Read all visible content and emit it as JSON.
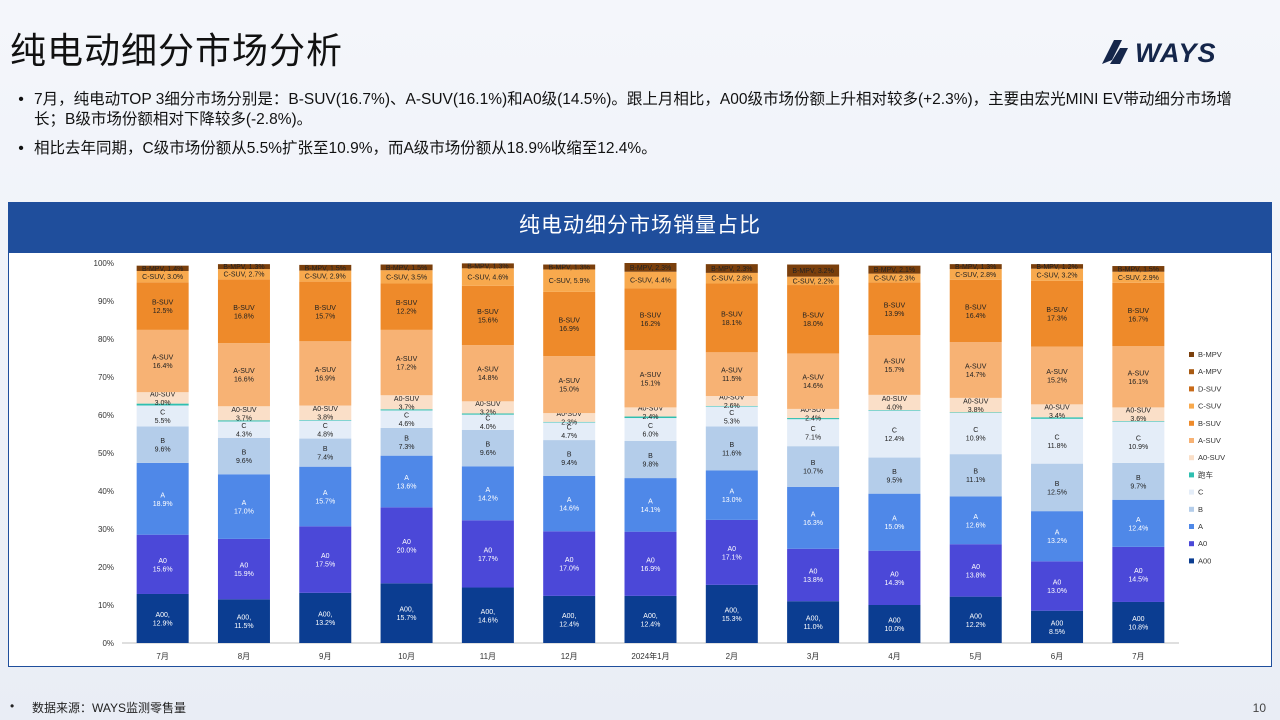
{
  "page": {
    "title": "纯电动细分市场分析",
    "logo_text": "WAYS",
    "bullets": [
      "7月，纯电动TOP 3细分市场分别是：B-SUV(16.7%)、A-SUV(16.1%)和A0级(14.5%)。跟上月相比，A00级市场份额上升相对较多(+2.3%)，主要由宏光MINI EV带动细分市场增长；B级市场份额相对下降较多(-2.8%)。",
      "相比去年同期，C级市场份额从5.5%扩张至10.9%，而A级市场份额从18.9%收缩至12.4%。"
    ],
    "bullet_symbol": "•",
    "footer_source": "数据来源：WAYS监测零售量",
    "page_number": "10"
  },
  "chart_data": {
    "type": "bar",
    "stacked": true,
    "normalized": true,
    "title": "纯电动细分市场销量占比",
    "categories": [
      "7月",
      "8月",
      "9月",
      "10月",
      "11月",
      "12月",
      "2024年1月",
      "2月",
      "3月",
      "4月",
      "5月",
      "6月",
      "7月"
    ],
    "ylim": [
      0,
      100
    ],
    "y_ticks": [
      "0%",
      "10%",
      "20%",
      "30%",
      "40%",
      "50%",
      "60%",
      "70%",
      "80%",
      "90%",
      "100%"
    ],
    "legend_position": "right",
    "series": [
      {
        "name": "A00",
        "color": "#0b3d91",
        "values": [
          12.9,
          11.5,
          13.2,
          15.7,
          14.6,
          12.4,
          12.4,
          15.3,
          11.0,
          10.0,
          12.2,
          8.5,
          10.8
        ],
        "labels": [
          "A00,\n12.9%",
          "A00,\n11.5%",
          "A00,\n13.2%",
          "A00,\n15.7%",
          "A00,\n14.6%",
          "A00,\n12.4%",
          "A00,\n12.4%",
          "A00,\n15.3%",
          "A00,\n11.0%",
          "A00\n10.0%",
          "A00\n12.2%",
          "A00\n8.5%",
          "A00\n10.8%"
        ]
      },
      {
        "name": "A0",
        "color": "#4b48d8",
        "values": [
          15.6,
          15.9,
          17.5,
          20.0,
          17.7,
          17.0,
          16.9,
          17.1,
          13.8,
          14.3,
          13.8,
          13.0,
          14.5
        ],
        "labels": [
          "A0\n15.6%",
          "A0\n15.9%",
          "A0\n17.5%",
          "A0\n20.0%",
          "A0\n17.7%",
          "A0\n17.0%",
          "A0\n16.9%",
          "A0\n17.1%",
          "A0\n13.8%",
          "A0\n14.3%",
          "A0\n13.8%",
          "A0\n13.0%",
          "A0\n14.5%"
        ]
      },
      {
        "name": "A",
        "color": "#4f88e8",
        "values": [
          18.9,
          17.0,
          15.7,
          13.6,
          14.2,
          14.6,
          14.1,
          13.0,
          16.3,
          15.0,
          12.6,
          13.2,
          12.4
        ],
        "labels": [
          "A\n18.9%",
          "A\n17.0%",
          "A\n15.7%",
          "A\n13.6%",
          "A\n14.2%",
          "A\n14.6%",
          "A\n14.1%",
          "A\n13.0%",
          "A\n16.3%",
          "A\n15.0%",
          "A\n12.6%",
          "A\n13.2%",
          "A\n12.4%"
        ]
      },
      {
        "name": "B",
        "color": "#b4cdea",
        "values": [
          9.6,
          9.6,
          7.4,
          7.3,
          9.6,
          9.4,
          9.8,
          11.6,
          10.7,
          9.5,
          11.1,
          12.5,
          9.7
        ],
        "labels": [
          "B\n9.6%",
          "B\n9.6%",
          "B\n7.4%",
          "B\n7.3%",
          "B\n9.6%",
          "B\n9.4%",
          "B\n9.8%",
          "B\n11.6%",
          "B\n10.7%",
          "B\n9.5%",
          "B\n11.1%",
          "B\n12.5%",
          "B\n9.7%"
        ]
      },
      {
        "name": "C",
        "color": "#e4edf8",
        "values": [
          5.5,
          4.3,
          4.8,
          4.6,
          4.0,
          4.7,
          6.0,
          5.3,
          7.1,
          12.4,
          10.9,
          11.8,
          10.9
        ],
        "labels": [
          "C\n5.5%",
          "C\n4.3%",
          "C\n4.8%",
          "C\n4.6%",
          "C\n4.0%",
          "C\n4.7%",
          "C\n6.0%",
          "C\n5.3%",
          "C\n7.1%",
          "C\n12.4%",
          "C\n10.9%",
          "C\n11.8%",
          "C\n10.9%"
        ]
      },
      {
        "name": "跑车",
        "color": "#2fbfb0",
        "values": [
          0.5,
          0.3,
          0.1,
          0.3,
          0.3,
          0.1,
          0.4,
          0.1,
          0.3,
          0.1,
          0.1,
          0.4,
          0.1
        ],
        "labels": []
      },
      {
        "name": "A0-SUV",
        "color": "#fadfc8",
        "values": [
          3.0,
          3.7,
          3.8,
          3.7,
          3.2,
          2.3,
          2.4,
          2.6,
          2.4,
          4.0,
          3.8,
          3.4,
          3.6
        ],
        "labels": [
          "A0-SUV\n3.0%",
          "A0-SUV\n3.7%",
          "A0-SUV\n3.8%",
          "A0-SUV\n3.7%",
          "A0-SUV\n3.2%",
          "A0-SUV\n2.3%",
          "A0-SUV\n2.4%",
          "A0-SUV\n2.6%",
          "A0-SUV\n2.4%",
          "A0-SUV\n4.0%",
          "A0-SUV\n3.8%",
          "A0-SUV\n3.4%",
          "A0-SUV\n3.6%"
        ]
      },
      {
        "name": "A-SUV",
        "color": "#f7b274",
        "values": [
          16.4,
          16.6,
          16.9,
          17.2,
          14.8,
          15.0,
          15.1,
          11.5,
          14.6,
          15.7,
          14.7,
          15.2,
          16.1
        ],
        "labels": [
          "A-SUV\n16.4%",
          "A-SUV\n16.6%",
          "A-SUV\n16.9%",
          "A-SUV\n17.2%",
          "A-SUV\n14.8%",
          "A-SUV\n15.0%",
          "A-SUV\n15.1%",
          "A-SUV\n11.5%",
          "A-SUV\n14.6%",
          "A-SUV\n15.7%",
          "A-SUV\n14.7%",
          "A-SUV\n15.2%",
          "A-SUV\n16.1%"
        ]
      },
      {
        "name": "B-SUV",
        "color": "#ee8a2a",
        "values": [
          12.5,
          16.8,
          15.7,
          12.2,
          15.6,
          16.9,
          16.2,
          18.1,
          18.0,
          13.9,
          16.4,
          17.3,
          16.7
        ],
        "labels": [
          "B-SUV\n12.5%",
          "B-SUV\n16.8%",
          "B-SUV\n15.7%",
          "B-SUV\n12.2%",
          "B-SUV\n15.6%",
          "B-SUV\n16.9%",
          "B-SUV\n16.2%",
          "B-SUV\n18.1%",
          "B-SUV\n18.0%",
          "B-SUV\n13.9%",
          "B-SUV\n16.4%",
          "B-SUV\n17.3%",
          "B-SUV\n16.7%"
        ]
      },
      {
        "name": "C-SUV",
        "color": "#f8a94d",
        "values": [
          3.0,
          2.7,
          2.9,
          3.5,
          4.6,
          5.9,
          4.4,
          2.8,
          2.2,
          2.3,
          2.8,
          3.2,
          2.9
        ],
        "labels": [
          "C-SUV, 3.0%",
          "C-SUV, 2.7%",
          "C-SUV, 2.9%",
          "C-SUV, 3.5%",
          "C-SUV, 4.6%",
          "C-SUV, 5.9%",
          "C-SUV, 4.4%",
          "C-SUV, 2.8%",
          "C-SUV, 2.2%",
          "C-SUV, 2.3%",
          "C-SUV, 2.8%",
          "C-SUV, 3.2%",
          "C-SUV, 2.9%"
        ]
      },
      {
        "name": "D-SUV",
        "color": "#c86a18",
        "values": [
          0,
          0,
          0,
          0,
          0,
          0,
          0,
          0,
          0,
          0,
          0,
          0,
          0
        ],
        "labels": []
      },
      {
        "name": "A-MPV",
        "color": "#a85a12",
        "values": [
          0,
          0,
          0,
          0,
          0,
          0,
          0,
          0,
          0,
          0,
          0,
          0,
          0
        ],
        "labels": []
      },
      {
        "name": "B-MPV",
        "color": "#7a3f0c",
        "values": [
          1.4,
          1.3,
          1.5,
          1.5,
          1.3,
          1.3,
          2.3,
          2.3,
          3.2,
          2.1,
          1.3,
          1.2,
          1.5
        ],
        "labels": [
          "B-MPV, 1.4%",
          "B-MPV, 1.3%",
          "B-MPV, 1.5%",
          "B-MPV, 1.5%",
          "B-MPV, 1.3%",
          "B-MPV, 1.3%",
          "B-MPV, 2.3%",
          "B-MPV, 2.3%",
          "B-MPV, 3.2%",
          "B-MPV, 2.1%",
          "B-MPV, 1.3%",
          "B-MPV, 1.2%",
          "B-MPV, 1.5%"
        ]
      }
    ],
    "legend_order": [
      "B-MPV",
      "A-MPV",
      "D-SUV",
      "C-SUV",
      "B-SUV",
      "A-SUV",
      "A0-SUV",
      "跑车",
      "C",
      "B",
      "A",
      "A0",
      "A00"
    ]
  }
}
